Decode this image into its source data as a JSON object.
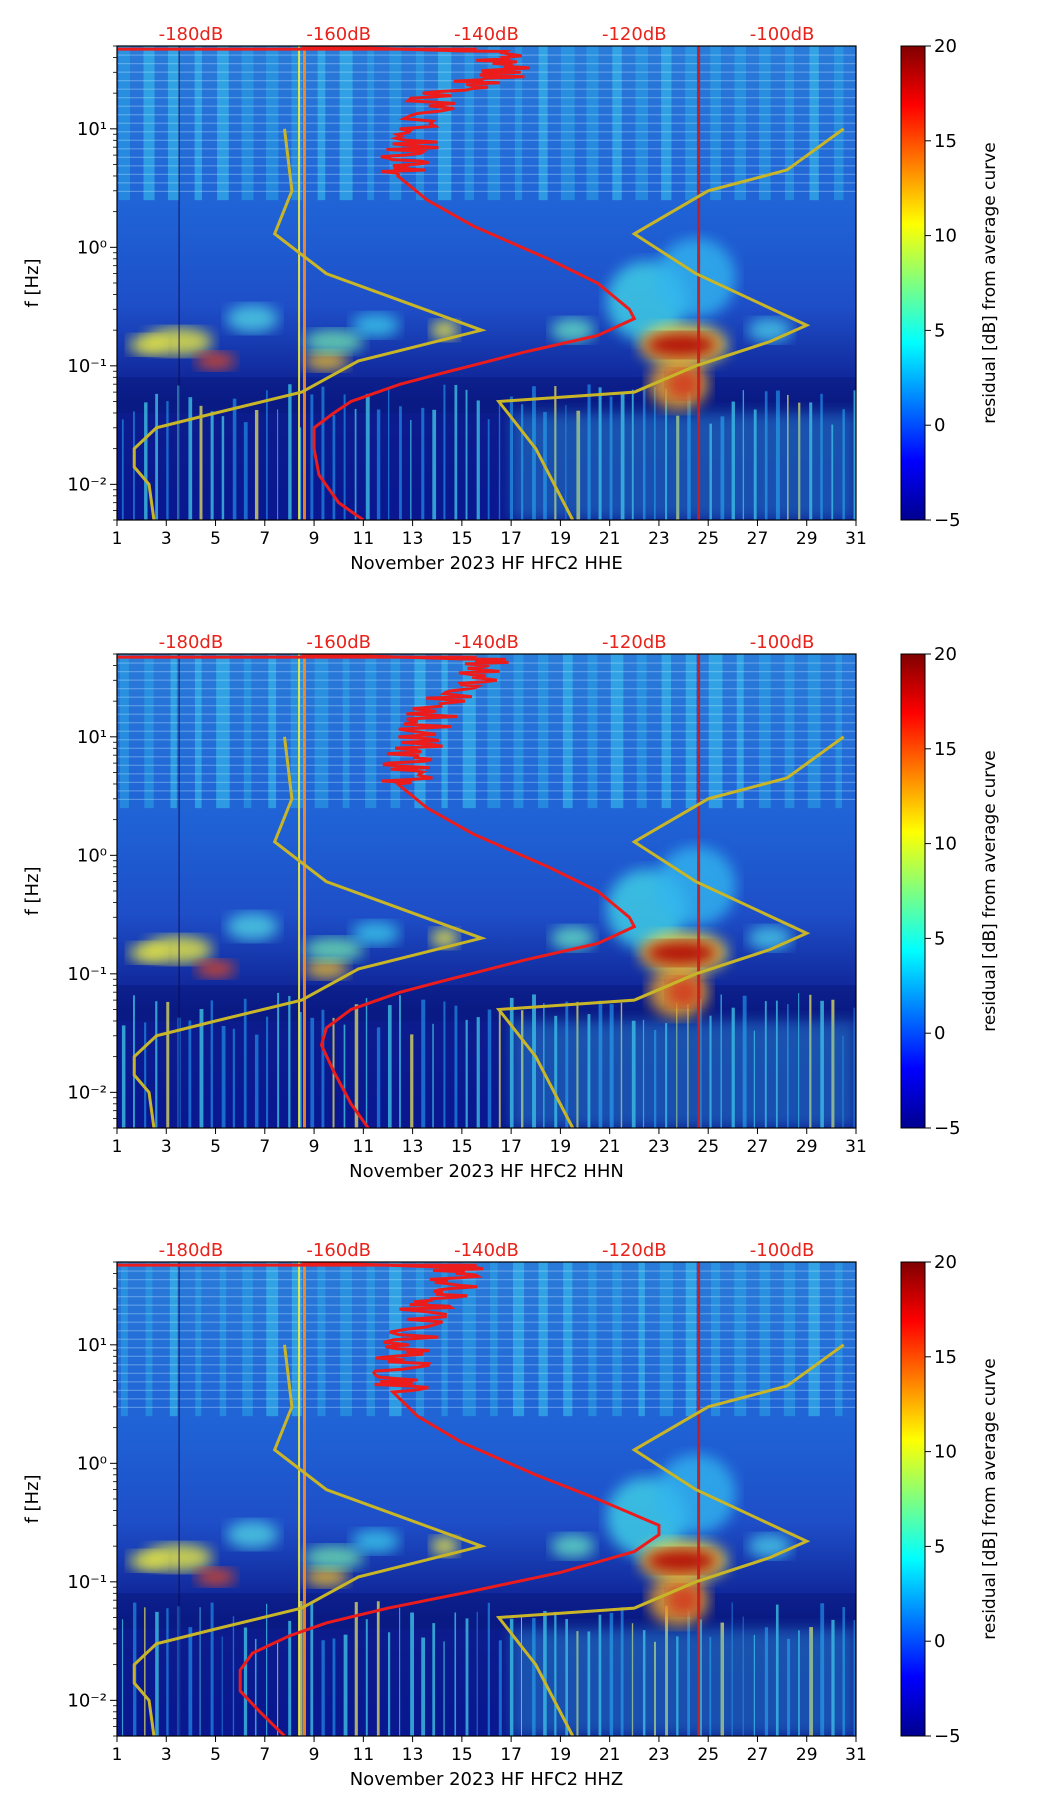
{
  "colorbar_label": "residual [dB] from average curve",
  "top_axis_labels": [
    "-180dB",
    "-160dB",
    "-140dB",
    "-120dB",
    "-100dB"
  ],
  "colors": {
    "top_label": "#e8231c",
    "psd_curve": "#ec1c1c",
    "noise_model": "#c8b628",
    "background_low": "#00008f",
    "background_mid": "#1e6ce8"
  },
  "chart_data": [
    {
      "type": "heatmap",
      "channel": "HHE",
      "xlabel": "November 2023 HF HFC2  HHE",
      "ylabel": "f [Hz]",
      "x_ticks": [
        "1",
        "3",
        "5",
        "7",
        "9",
        "11",
        "13",
        "15",
        "17",
        "19",
        "21",
        "23",
        "25",
        "27",
        "29",
        "31"
      ],
      "x_range": [
        1,
        31
      ],
      "y_ticks": [
        "10⁻²",
        "10⁻¹",
        "10⁰",
        "10¹"
      ],
      "y_range_hz": [
        0.005,
        50
      ],
      "colorbar": {
        "ticks": [
          "−5",
          "0",
          "5",
          "10",
          "15",
          "20"
        ],
        "range": [
          -5,
          20
        ]
      },
      "psd_curve": {
        "name": "average PSD (top dB axis)",
        "points": [
          [
            50,
            8.5
          ],
          [
            45,
            15.6
          ],
          [
            30,
            16.5
          ],
          [
            20,
            13.6
          ],
          [
            10,
            13.0
          ],
          [
            6,
            12.4
          ],
          [
            4,
            12.4
          ],
          [
            2.5,
            13.6
          ],
          [
            1.5,
            15.5
          ],
          [
            0.8,
            18.5
          ],
          [
            0.5,
            20.5
          ],
          [
            0.3,
            21.8
          ],
          [
            0.25,
            22.0
          ],
          [
            0.18,
            20.5
          ],
          [
            0.13,
            17.5
          ],
          [
            0.09,
            14.5
          ],
          [
            0.07,
            12.5
          ],
          [
            0.05,
            10.5
          ],
          [
            0.04,
            9.8
          ],
          [
            0.03,
            9.0
          ],
          [
            0.02,
            9.0
          ],
          [
            0.012,
            9.2
          ],
          [
            0.007,
            10.0
          ],
          [
            0.005,
            11.0
          ]
        ]
      },
      "noise_model": {
        "name": "noise model (top dB axis)",
        "low": [
          [
            10,
            7.8
          ],
          [
            3,
            8.1
          ],
          [
            1.3,
            7.4
          ],
          [
            0.6,
            9.5
          ],
          [
            0.2,
            15.8
          ],
          [
            0.11,
            10.8
          ],
          [
            0.06,
            8.5
          ],
          [
            0.04,
            5.0
          ],
          [
            0.03,
            2.6
          ],
          [
            0.02,
            1.7
          ],
          [
            0.014,
            1.7
          ],
          [
            0.01,
            2.3
          ],
          [
            0.005,
            2.5
          ]
        ],
        "high": [
          [
            10,
            30.5
          ],
          [
            4.5,
            28.2
          ],
          [
            3,
            25.0
          ],
          [
            1.3,
            22.0
          ],
          [
            0.6,
            24.5
          ],
          [
            0.22,
            29.0
          ],
          [
            0.16,
            27.5
          ],
          [
            0.1,
            24.5
          ],
          [
            0.06,
            22.0
          ],
          [
            0.05,
            16.5
          ],
          [
            0.02,
            18.0
          ],
          [
            0.005,
            19.5
          ]
        ]
      }
    },
    {
      "type": "heatmap",
      "channel": "HHN",
      "xlabel": "November 2023 HF HFC2  HHN",
      "ylabel": "f [Hz]",
      "x_ticks": [
        "1",
        "3",
        "5",
        "7",
        "9",
        "11",
        "13",
        "15",
        "17",
        "19",
        "21",
        "23",
        "25",
        "27",
        "29",
        "31"
      ],
      "x_range": [
        1,
        31
      ],
      "y_ticks": [
        "10⁻²",
        "10⁻¹",
        "10⁰",
        "10¹"
      ],
      "y_range_hz": [
        0.005,
        50
      ],
      "colorbar": {
        "ticks": [
          "−5",
          "0",
          "5",
          "10",
          "15",
          "20"
        ],
        "range": [
          -5,
          20
        ]
      },
      "psd_curve": {
        "name": "average PSD (top dB axis)",
        "points": [
          [
            50,
            8.5
          ],
          [
            45,
            15.6
          ],
          [
            30,
            15.5
          ],
          [
            20,
            13.6
          ],
          [
            10,
            13.0
          ],
          [
            6,
            12.4
          ],
          [
            4,
            12.4
          ],
          [
            2.5,
            13.6
          ],
          [
            1.5,
            15.5
          ],
          [
            0.8,
            18.5
          ],
          [
            0.5,
            20.5
          ],
          [
            0.3,
            21.8
          ],
          [
            0.25,
            22.0
          ],
          [
            0.18,
            20.5
          ],
          [
            0.13,
            17.5
          ],
          [
            0.09,
            14.5
          ],
          [
            0.07,
            12.5
          ],
          [
            0.05,
            10.5
          ],
          [
            0.035,
            9.5
          ],
          [
            0.025,
            9.3
          ],
          [
            0.015,
            9.8
          ],
          [
            0.008,
            10.5
          ],
          [
            0.005,
            11.2
          ]
        ]
      },
      "noise_model": {
        "name": "noise model (top dB axis)",
        "low": [
          [
            10,
            7.8
          ],
          [
            3,
            8.1
          ],
          [
            1.3,
            7.4
          ],
          [
            0.6,
            9.5
          ],
          [
            0.2,
            15.8
          ],
          [
            0.11,
            10.8
          ],
          [
            0.06,
            8.5
          ],
          [
            0.04,
            5.0
          ],
          [
            0.03,
            2.6
          ],
          [
            0.02,
            1.7
          ],
          [
            0.014,
            1.7
          ],
          [
            0.01,
            2.3
          ],
          [
            0.005,
            2.5
          ]
        ],
        "high": [
          [
            10,
            30.5
          ],
          [
            4.5,
            28.2
          ],
          [
            3,
            25.0
          ],
          [
            1.3,
            22.0
          ],
          [
            0.6,
            24.5
          ],
          [
            0.22,
            29.0
          ],
          [
            0.16,
            27.5
          ],
          [
            0.1,
            24.5
          ],
          [
            0.06,
            22.0
          ],
          [
            0.05,
            16.5
          ],
          [
            0.02,
            18.0
          ],
          [
            0.005,
            19.5
          ]
        ]
      }
    },
    {
      "type": "heatmap",
      "channel": "HHZ",
      "xlabel": "November 2023 HF HFC2  HHZ",
      "ylabel": "f [Hz]",
      "x_ticks": [
        "1",
        "3",
        "5",
        "7",
        "9",
        "11",
        "13",
        "15",
        "17",
        "19",
        "21",
        "23",
        "25",
        "27",
        "29",
        "31"
      ],
      "x_range": [
        1,
        31
      ],
      "y_ticks": [
        "10⁻²",
        "10⁻¹",
        "10⁰",
        "10¹"
      ],
      "y_range_hz": [
        0.005,
        50
      ],
      "colorbar": {
        "ticks": [
          "−5",
          "0",
          "5",
          "10",
          "15",
          "20"
        ],
        "range": [
          -5,
          20
        ]
      },
      "psd_curve": {
        "name": "average PSD (top dB axis)",
        "points": [
          [
            50,
            8.5
          ],
          [
            45,
            14.5
          ],
          [
            30,
            14.0
          ],
          [
            20,
            13.0
          ],
          [
            10,
            12.3
          ],
          [
            6,
            12.0
          ],
          [
            4,
            12.2
          ],
          [
            2.5,
            13.2
          ],
          [
            1.5,
            15.0
          ],
          [
            0.8,
            18.0
          ],
          [
            0.5,
            20.5
          ],
          [
            0.3,
            23.0
          ],
          [
            0.25,
            23.0
          ],
          [
            0.18,
            22.0
          ],
          [
            0.12,
            19.0
          ],
          [
            0.08,
            15.0
          ],
          [
            0.06,
            12.0
          ],
          [
            0.045,
            9.5
          ],
          [
            0.035,
            8.0
          ],
          [
            0.025,
            6.5
          ],
          [
            0.018,
            6.0
          ],
          [
            0.012,
            6.0
          ],
          [
            0.008,
            6.8
          ],
          [
            0.005,
            7.8
          ]
        ]
      },
      "noise_model": {
        "name": "noise model (top dB axis)",
        "low": [
          [
            10,
            7.8
          ],
          [
            3,
            8.1
          ],
          [
            1.3,
            7.4
          ],
          [
            0.6,
            9.5
          ],
          [
            0.2,
            15.8
          ],
          [
            0.11,
            10.8
          ],
          [
            0.06,
            8.5
          ],
          [
            0.04,
            5.0
          ],
          [
            0.03,
            2.6
          ],
          [
            0.02,
            1.7
          ],
          [
            0.014,
            1.7
          ],
          [
            0.01,
            2.3
          ],
          [
            0.005,
            2.5
          ]
        ],
        "high": [
          [
            10,
            30.5
          ],
          [
            4.5,
            28.2
          ],
          [
            3,
            25.0
          ],
          [
            1.3,
            22.0
          ],
          [
            0.6,
            24.5
          ],
          [
            0.22,
            29.0
          ],
          [
            0.16,
            27.5
          ],
          [
            0.1,
            24.5
          ],
          [
            0.06,
            22.0
          ],
          [
            0.05,
            16.5
          ],
          [
            0.02,
            18.0
          ],
          [
            0.005,
            19.5
          ]
        ]
      }
    }
  ]
}
